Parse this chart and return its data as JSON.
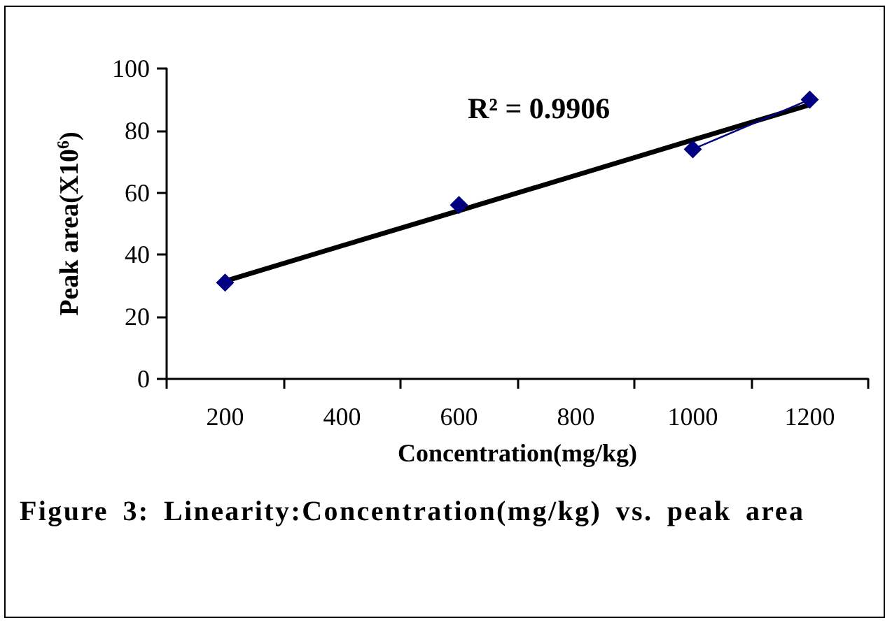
{
  "chart_data": {
    "type": "line",
    "title": "Figure 3: Linearity:Concentration(mg/kg) vs. peak area",
    "xlabel": "Concentration(mg/kg)",
    "ylabel": "Peak area(X10$^{6}$)",
    "categories": [
      "200",
      "400",
      "600",
      "800",
      "1000",
      "1200"
    ],
    "series": [
      {
        "color": "#000080",
        "values": [
          31,
          null,
          56,
          null,
          74,
          90
        ],
        "marker": "diamond"
      },
      {
        "color": "#000000",
        "values": [
          31.5,
          42.9,
          54.2,
          65.6,
          77.0,
          88.3
        ],
        "marker": "none",
        "line_style": "solid"
      }
    ],
    "ylim": [
      0,
      100
    ],
    "yticks": [
      0,
      20,
      40,
      60,
      80,
      100
    ],
    "grid": false,
    "annotations": [
      "R² = 0.9906"
    ]
  }
}
